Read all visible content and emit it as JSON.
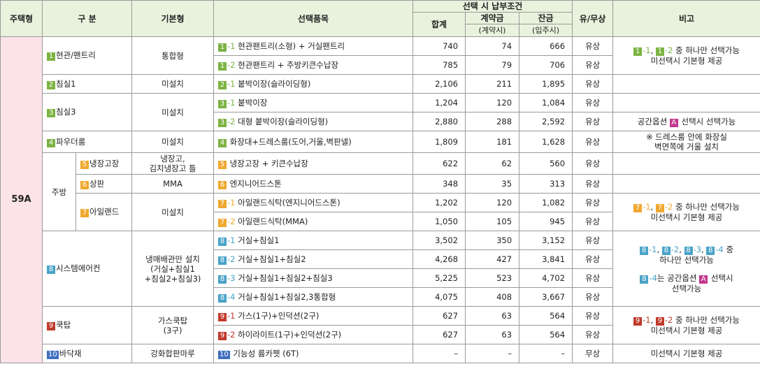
{
  "header": {
    "house_type": "주택형",
    "category": "구 분",
    "basic": "기본형",
    "item": "선택품목",
    "payment": "선택 시 납부조건",
    "total": "합계",
    "deposit": "계약금",
    "deposit_when": "(계약시)",
    "balance": "잔금",
    "balance_when": "(입주시)",
    "paid": "유/무상",
    "remark": "비고"
  },
  "house_type": "59A",
  "body": [
    {
      "category": [
        {
          "text": "1",
          "badge": "#7cb342"
        },
        {
          "text": "현관/팬트리"
        }
      ],
      "basic": [
        "통합형"
      ],
      "remark": [
        [
          [
            {
              "text": "1",
              "badge": "#7cb342"
            },
            {
              "text": "-1",
              "color": "#7cb342"
            },
            {
              "text": ", "
            },
            {
              "text": "1",
              "badge": "#7cb342"
            },
            {
              "text": "-2",
              "color": "#7cb342"
            },
            {
              "text": " 중 하나만 선택가능"
            }
          ],
          [
            {
              "text": "미선택시 기본형 제공"
            }
          ]
        ]
      ],
      "items": [
        {
          "item": [
            {
              "text": "1",
              "badge": "#7cb342"
            },
            {
              "text": "-1",
              "color": "#7cb342"
            },
            {
              "text": " 현관팬트리(소형) + 거실팬트리"
            }
          ],
          "total": "740",
          "deposit": "74",
          "balance": "666",
          "paid": "유상"
        },
        {
          "item": [
            {
              "text": "1",
              "badge": "#7cb342"
            },
            {
              "text": "-2",
              "color": "#7cb342"
            },
            {
              "text": " 현관팬트리 + 주방키큰수납장"
            }
          ],
          "total": "785",
          "deposit": "79",
          "balance": "706",
          "paid": "유상"
        }
      ]
    },
    {
      "category": [
        {
          "text": "2",
          "badge": "#7cb342"
        },
        {
          "text": "침실1"
        }
      ],
      "basic": [
        "미설치"
      ],
      "items": [
        {
          "item": [
            {
              "text": "2",
              "badge": "#7cb342"
            },
            {
              "text": "-1",
              "color": "#7cb342"
            },
            {
              "text": " 붙박이장(슬라이딩형)"
            }
          ],
          "total": "2,106",
          "deposit": "211",
          "balance": "1,895",
          "paid": "유상"
        }
      ]
    },
    {
      "category": [
        {
          "text": "3",
          "badge": "#7cb342"
        },
        {
          "text": "침실3"
        }
      ],
      "basic": [
        "미설치"
      ],
      "items": [
        {
          "item": [
            {
              "text": "3",
              "badge": "#7cb342"
            },
            {
              "text": "-1",
              "color": "#7cb342"
            },
            {
              "text": " 붙박이장"
            }
          ],
          "total": "1,204",
          "deposit": "120",
          "balance": "1,084",
          "paid": "유상"
        },
        {
          "item": [
            {
              "text": "3",
              "badge": "#7cb342"
            },
            {
              "text": "-2",
              "color": "#7cb342"
            },
            {
              "text": " 대형 붙박이장(슬라이딩형)"
            }
          ],
          "total": "2,880",
          "deposit": "288",
          "balance": "2,592",
          "paid": "유상",
          "remark": [
            [
              [
                {
                  "text": "공간옵션 "
                },
                {
                  "text": "A",
                  "badge": "#c2378e"
                },
                {
                  "text": " 선택시 선택가능"
                }
              ]
            ]
          ]
        }
      ]
    },
    {
      "category": [
        {
          "text": "4",
          "badge": "#7cb342"
        },
        {
          "text": "파우더룸"
        }
      ],
      "basic": [
        "미설치"
      ],
      "items": [
        {
          "item": [
            {
              "text": "4",
              "badge": "#7cb342"
            },
            {
              "text": " 화장대+드레스룸(도어,거울,벽판넬)"
            }
          ],
          "total": "1,809",
          "deposit": "181",
          "balance": "1,628",
          "paid": "유상",
          "remark": [
            [
              [
                {
                  "text": "※ 드레스룸 안에 화장실"
                }
              ],
              [
                {
                  "text": "벽면쪽에 거울 설치"
                }
              ]
            ]
          ]
        }
      ]
    },
    {
      "section": "주방",
      "groups": [
        {
          "category": [
            {
              "text": "5",
              "badge": "#f0a830"
            },
            {
              "text": "냉장고장"
            }
          ],
          "basic": [
            "냉장고,",
            "김치냉장고 틀"
          ],
          "items": [
            {
              "item": [
                {
                  "text": "5",
                  "badge": "#f0a830"
                },
                {
                  "text": " 냉장고장 + 키큰수납장"
                }
              ],
              "total": "622",
              "deposit": "62",
              "balance": "560",
              "paid": "유상"
            }
          ]
        },
        {
          "category": [
            {
              "text": "6",
              "badge": "#f0a830"
            },
            {
              "text": "상판"
            }
          ],
          "basic": [
            "MMA"
          ],
          "items": [
            {
              "item": [
                {
                  "text": "6",
                  "badge": "#f0a830"
                },
                {
                  "text": " 엔지니어드스톤"
                }
              ],
              "total": "348",
              "deposit": "35",
              "balance": "313",
              "paid": "유상"
            }
          ]
        },
        {
          "category": [
            {
              "text": "7",
              "badge": "#f0a830"
            },
            {
              "text": "아일랜드"
            }
          ],
          "basic": [
            "미설치"
          ],
          "remark": [
            [
              [
                {
                  "text": "7",
                  "badge": "#f0a830"
                },
                {
                  "text": "-1",
                  "color": "#f0a830"
                },
                {
                  "text": ", "
                },
                {
                  "text": "7",
                  "badge": "#f0a830"
                },
                {
                  "text": "-2",
                  "color": "#f0a830"
                },
                {
                  "text": " 중 하나만 선택가능"
                }
              ],
              [
                {
                  "text": "미선택시 기본형 제공"
                }
              ]
            ]
          ],
          "items": [
            {
              "item": [
                {
                  "text": "7",
                  "badge": "#f0a830"
                },
                {
                  "text": "-1",
                  "color": "#f0a830"
                },
                {
                  "text": " 아일랜드식탁(엔지니어드스톤)"
                }
              ],
              "total": "1,202",
              "deposit": "120",
              "balance": "1,082",
              "paid": "유상"
            },
            {
              "item": [
                {
                  "text": "7",
                  "badge": "#f0a830"
                },
                {
                  "text": "-2",
                  "color": "#f0a830"
                },
                {
                  "text": " 아일랜드식탁(MMA)"
                }
              ],
              "total": "1,050",
              "deposit": "105",
              "balance": "945",
              "paid": "유상"
            }
          ]
        }
      ]
    },
    {
      "category": [
        {
          "text": "8",
          "badge": "#4aa3c8"
        },
        {
          "text": "시스템에어컨"
        }
      ],
      "basic": [
        "냉매배관만 설치",
        "(거실+침실1",
        "+침실2+침실3)"
      ],
      "remark": [
        [
          [
            {
              "text": "8",
              "badge": "#4aa3c8"
            },
            {
              "text": "-1",
              "color": "#4aa3c8"
            },
            {
              "text": ", "
            },
            {
              "text": "8",
              "badge": "#4aa3c8"
            },
            {
              "text": "-2",
              "color": "#4aa3c8"
            },
            {
              "text": ", "
            },
            {
              "text": "8",
              "badge": "#4aa3c8"
            },
            {
              "text": "-3",
              "color": "#4aa3c8"
            },
            {
              "text": ", "
            },
            {
              "text": "8",
              "badge": "#4aa3c8"
            },
            {
              "text": "-4",
              "color": "#4aa3c8"
            },
            {
              "text": " 중"
            }
          ],
          [
            {
              "text": "하나만 선택가능"
            }
          ]
        ],
        [
          [
            {
              "text": "8",
              "badge": "#4aa3c8"
            },
            {
              "text": "-4",
              "color": "#4aa3c8"
            },
            {
              "text": "는 공간옵션 "
            },
            {
              "text": "A",
              "badge": "#c2378e"
            },
            {
              "text": " 선택시"
            }
          ],
          [
            {
              "text": "선택가능"
            }
          ]
        ]
      ],
      "items": [
        {
          "item": [
            {
              "text": "8",
              "badge": "#4aa3c8"
            },
            {
              "text": "-1",
              "color": "#4aa3c8"
            },
            {
              "text": " 거실+침실1"
            }
          ],
          "total": "3,502",
          "deposit": "350",
          "balance": "3,152",
          "paid": "유상"
        },
        {
          "item": [
            {
              "text": "8",
              "badge": "#4aa3c8"
            },
            {
              "text": "-2",
              "color": "#4aa3c8"
            },
            {
              "text": " 거실+침실1+침실2"
            }
          ],
          "total": "4,268",
          "deposit": "427",
          "balance": "3,841",
          "paid": "유상"
        },
        {
          "item": [
            {
              "text": "8",
              "badge": "#4aa3c8"
            },
            {
              "text": "-3",
              "color": "#4aa3c8"
            },
            {
              "text": " 거실+침실1+침실2+침실3"
            }
          ],
          "total": "5,225",
          "deposit": "523",
          "balance": "4,702",
          "paid": "유상"
        },
        {
          "item": [
            {
              "text": "8",
              "badge": "#4aa3c8"
            },
            {
              "text": "-4",
              "color": "#4aa3c8"
            },
            {
              "text": " 거실+침실1+침실2,3통합형"
            }
          ],
          "total": "4,075",
          "deposit": "408",
          "balance": "3,667",
          "paid": "유상"
        }
      ]
    },
    {
      "category": [
        {
          "text": "9",
          "badge": "#c0392b"
        },
        {
          "text": "쿡탑"
        }
      ],
      "basic": [
        "가스쿡탑",
        "(3구)"
      ],
      "remark": [
        [
          [
            {
              "text": "9",
              "badge": "#c0392b"
            },
            {
              "text": "-1",
              "color": "#c0392b"
            },
            {
              "text": ", "
            },
            {
              "text": "9",
              "badge": "#c0392b"
            },
            {
              "text": "-2",
              "color": "#c0392b"
            },
            {
              "text": " 중 하나만 선택가능"
            }
          ],
          [
            {
              "text": "미선택시 기본형 제공"
            }
          ]
        ]
      ],
      "items": [
        {
          "item": [
            {
              "text": "9",
              "badge": "#c0392b"
            },
            {
              "text": "-1",
              "color": "#c0392b"
            },
            {
              "text": " 가스(1구)+인덕션(2구)"
            }
          ],
          "total": "627",
          "deposit": "63",
          "balance": "564",
          "paid": "유상"
        },
        {
          "item": [
            {
              "text": "9",
              "badge": "#c0392b"
            },
            {
              "text": "-2",
              "color": "#c0392b"
            },
            {
              "text": " 하이라이트(1구)+인덕션(2구)"
            }
          ],
          "total": "627",
          "deposit": "63",
          "balance": "564",
          "paid": "유상"
        }
      ]
    },
    {
      "category": [
        {
          "text": "10",
          "badge": "#3f6fbf"
        },
        {
          "text": "바닥재"
        }
      ],
      "basic": [
        "강화합판마루"
      ],
      "items": [
        {
          "item": [
            {
              "text": "10",
              "badge": "#3f6fbf"
            },
            {
              "text": " 기능성 륨카펫 (6T)"
            }
          ],
          "total": "–",
          "deposit": "–",
          "balance": "–",
          "paid": "무상",
          "remark": [
            [
              [
                {
                  "text": "미선택시 기본형 제공"
                }
              ]
            ]
          ]
        }
      ]
    }
  ]
}
